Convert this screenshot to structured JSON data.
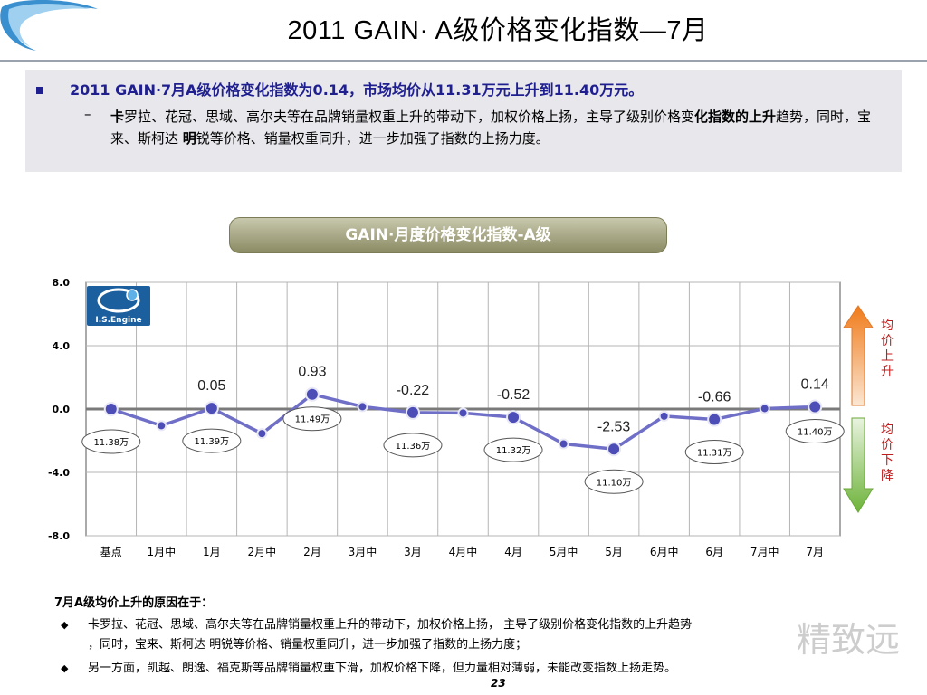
{
  "page": {
    "title": "2011 GAIN· A级价格变化指数—7月",
    "page_number": "23",
    "watermark": "精致远"
  },
  "summary": {
    "bullet1": "2011 GAIN·7月A级价格变化指数为0.14，市场均价从11.31万元上升到11.40万元。",
    "bullet2_bold1": "卡",
    "bullet2_text1": "罗拉、花冠、思域、高尔夫等在品牌销量权重上升的带动下，加权价格上扬，主导了级别价格变",
    "bullet2_bold2": "化指数的上升",
    "bullet2_text2": "趋势，同时，宝来、斯柯达 ",
    "bullet2_bold3": "明",
    "bullet2_text3": "锐等价格、销量权重同升，进一步加强了指数的上扬力度。"
  },
  "logo": {
    "text": "I.S.Engine"
  },
  "arrows": {
    "up_label": "均价上升",
    "down_label": "均价下降",
    "up_color": "#f08a24",
    "down_color": "#7cbd3e"
  },
  "chart_data": {
    "type": "line",
    "title": "GAIN·月度价格变化指数-A级",
    "categories": [
      "基点",
      "1月中",
      "1月",
      "2月中",
      "2月",
      "3月中",
      "3月",
      "4月中",
      "4月",
      "5月中",
      "5月",
      "6月中",
      "6月",
      "7月中",
      "7月"
    ],
    "series": [
      {
        "values": [
          0,
          -1.05,
          0.05,
          -1.55,
          0.93,
          0.15,
          -0.22,
          -0.25,
          -0.52,
          -2.2,
          -2.53,
          -0.45,
          -0.66,
          0.03,
          0.14
        ]
      }
    ],
    "ylim": [
      -8,
      8
    ],
    "yticks": [
      "8.0",
      "4.0",
      "0.0",
      "-4.0",
      "-8.0"
    ],
    "point_labels": [
      {
        "index": 2,
        "text": "0.05"
      },
      {
        "index": 4,
        "text": "0.93"
      },
      {
        "index": 6,
        "text": "-0.22"
      },
      {
        "index": 8,
        "text": "-0.52"
      },
      {
        "index": 10,
        "text": "-2.53"
      },
      {
        "index": 12,
        "text": "-0.66"
      },
      {
        "index": 14,
        "text": "0.14"
      }
    ],
    "price_labels": [
      {
        "index": 0,
        "text": "11.38万"
      },
      {
        "index": 2,
        "text": "11.39万"
      },
      {
        "index": 4,
        "text": "11.49万"
      },
      {
        "index": 6,
        "text": "11.36万"
      },
      {
        "index": 8,
        "text": "11.32万"
      },
      {
        "index": 10,
        "text": "11.10万"
      },
      {
        "index": 12,
        "text": "11.31万"
      },
      {
        "index": 14,
        "text": "11.40万"
      }
    ],
    "grid": true,
    "line_color": "#6f6fc8",
    "marker_color": "#4d4db8"
  },
  "reasons": {
    "title": "7月A级均价上升的原因在于：",
    "items": [
      {
        "line1": "卡罗拉、花冠、思域、高尔夫等在品牌销量权重上升的带动下，加权价格上扬， 主导了级别价格变化指数的上升趋势",
        "line2": "，同时，宝来、斯柯达 明锐等价格、销量权重同升，进一步加强了指数的上扬力度；"
      },
      {
        "line1": "另一方面，凯越、朗逸、福克斯等品牌销量权重下滑，加权价格下降，但力量相对薄弱，未能改变指数上扬走势。",
        "line2": ""
      }
    ]
  }
}
